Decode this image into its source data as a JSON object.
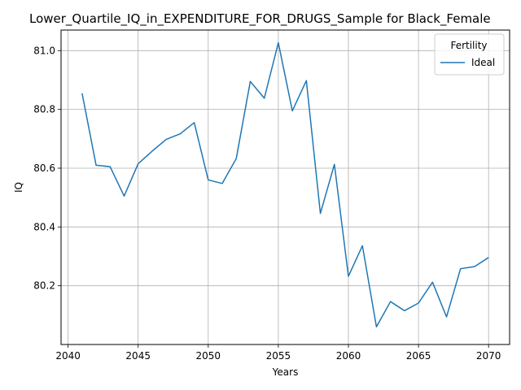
{
  "chart_data": {
    "type": "line",
    "title": "Lower_Quartile_IQ_in_EXPENDITURE_FOR_DRUGS_Sample for Black_Female",
    "xlabel": "Years",
    "ylabel": "IQ",
    "xlim": [
      2039.5,
      2071.5
    ],
    "ylim": [
      80.0,
      81.07
    ],
    "xticks": [
      2040,
      2045,
      2050,
      2055,
      2060,
      2065,
      2070
    ],
    "yticks": [
      80.2,
      80.4,
      80.6,
      80.8,
      81.0
    ],
    "xtick_labels": [
      "2040",
      "2045",
      "2050",
      "2055",
      "2060",
      "2065",
      "2070"
    ],
    "ytick_labels": [
      "80.2",
      "80.4",
      "80.6",
      "80.8",
      "81.0"
    ],
    "grid": true,
    "legend": {
      "title": "Fertility",
      "position": "top-right"
    },
    "series": [
      {
        "name": "Ideal",
        "color": "#1f77b4",
        "x": [
          2041,
          2042,
          2043,
          2044,
          2045,
          2046,
          2047,
          2048,
          2049,
          2050,
          2051,
          2052,
          2053,
          2054,
          2055,
          2056,
          2057,
          2058,
          2059,
          2060,
          2061,
          2062,
          2063,
          2064,
          2065,
          2066,
          2067,
          2068,
          2069,
          2070
        ],
        "y": [
          80.855,
          80.61,
          80.605,
          80.505,
          80.615,
          80.658,
          80.698,
          80.717,
          80.755,
          80.56,
          80.548,
          80.633,
          80.895,
          80.838,
          81.027,
          80.795,
          80.898,
          80.446,
          80.613,
          80.232,
          80.336,
          80.06,
          80.146,
          80.115,
          80.141,
          80.212,
          80.094,
          80.258,
          80.265,
          80.296
        ]
      }
    ]
  }
}
